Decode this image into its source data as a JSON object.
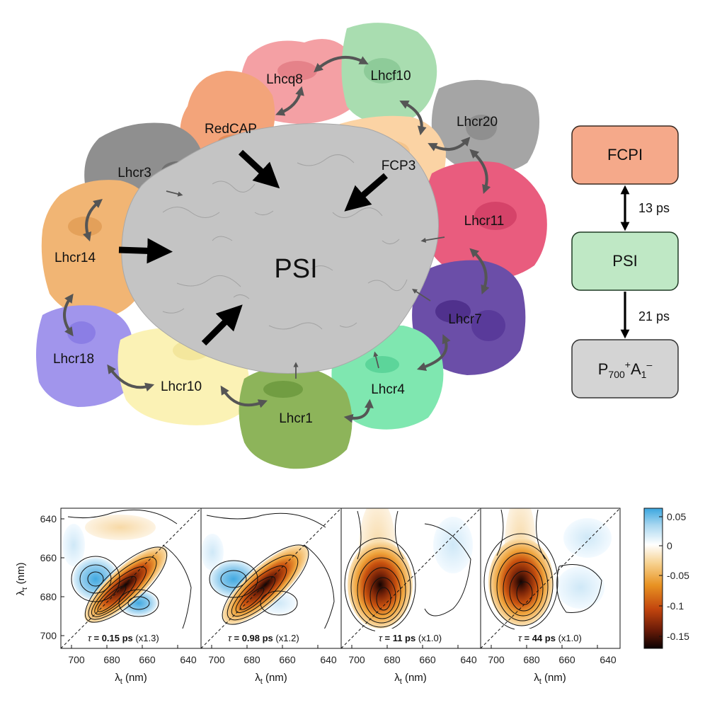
{
  "complex": {
    "core": {
      "label": "PSI",
      "color": "#c4c4c4"
    },
    "subunits": [
      {
        "id": "lhcq8",
        "label": "Lhcq8",
        "color": "#f4a0a4"
      },
      {
        "id": "lhcf10",
        "label": "Lhcf10",
        "color": "#a9ddb0"
      },
      {
        "id": "redcap",
        "label": "RedCAP",
        "color": "#f3a47a"
      },
      {
        "id": "lhcr20",
        "label": "Lhcr20",
        "color": "#a5a5a5"
      },
      {
        "id": "fcp3",
        "label": "FCP3",
        "color": "#fbd3a4"
      },
      {
        "id": "lhcr3",
        "label": "Lhcr3",
        "color": "#8f8f8f"
      },
      {
        "id": "lhcr11",
        "label": "Lhcr11",
        "color": "#e95c7e"
      },
      {
        "id": "lhcr14",
        "label": "Lhcr14",
        "color": "#f1b574"
      },
      {
        "id": "lhcr7",
        "label": "Lhcr7",
        "color": "#6b4ea8"
      },
      {
        "id": "lhcr18",
        "label": "Lhcr18",
        "color": "#a195ec"
      },
      {
        "id": "lhcr10",
        "label": "Lhcr10",
        "color": "#fbf2b5"
      },
      {
        "id": "lhcr1",
        "label": "Lhcr1",
        "color": "#8db45a"
      },
      {
        "id": "lhcr4",
        "label": "Lhcr4",
        "color": "#7fe7b0"
      }
    ]
  },
  "kinetics": {
    "states": [
      {
        "label": "FCPI",
        "color": "#f5a98a"
      },
      {
        "label": "PSI",
        "color": "#bfe8c5"
      },
      {
        "label_main": "P",
        "sub1": "700",
        "sup1": "+",
        "mid": "A",
        "sub2": "1",
        "sup2": "–",
        "color": "#d4d4d4"
      }
    ],
    "transitions": [
      {
        "time": "13 ps"
      },
      {
        "time": "21 ps"
      }
    ]
  },
  "spectra": {
    "ylabel_main": "λ",
    "ylabel_sub": "τ",
    "ylabel_unit": "(nm)",
    "xlabel_main": "λ",
    "xlabel_sub": "t",
    "xlabel_unit": "(nm)",
    "yticks": [
      "640",
      "660",
      "680",
      "700"
    ],
    "xticks": [
      "700",
      "680",
      "660",
      "640"
    ],
    "panels": [
      {
        "tau_symbol": "τ",
        "tau_value": "= 0.15 ps",
        "scale": "(x1.3)"
      },
      {
        "tau_symbol": "τ",
        "tau_value": "= 0.98 ps",
        "scale": "(x1.2)"
      },
      {
        "tau_symbol": "τ",
        "tau_value": "= 11 ps",
        "scale": "(x1.0)"
      },
      {
        "tau_symbol": "τ",
        "tau_value": "= 44 ps",
        "scale": "(x1.0)"
      }
    ],
    "colorbar": {
      "ticks": [
        "0.05",
        "0",
        "-0.05",
        "-0.1",
        "-0.15"
      ]
    }
  }
}
